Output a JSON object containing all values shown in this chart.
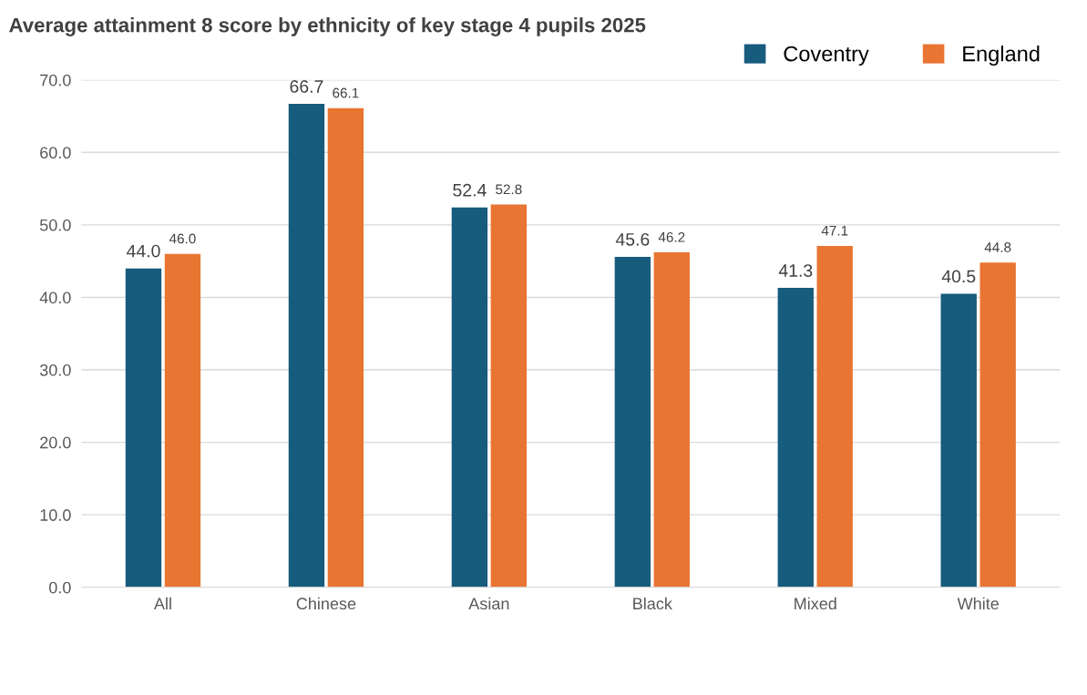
{
  "chart_data": {
    "type": "bar",
    "title": "Average attainment 8 score by ethnicity of key stage 4 pupils 2025",
    "categories": [
      "All",
      "Chinese",
      "Asian",
      "Black",
      "Mixed",
      "White"
    ],
    "series": [
      {
        "name": "Coventry",
        "color": "#175b7d",
        "values": [
          44.0,
          66.7,
          52.4,
          45.6,
          41.3,
          40.5
        ],
        "value_labels": [
          "44.0",
          "66.7",
          "52.4",
          "45.6",
          "41.3",
          "40.5"
        ]
      },
      {
        "name": "England",
        "color": "#e97532",
        "values": [
          46.0,
          66.1,
          52.8,
          46.2,
          47.1,
          44.8
        ],
        "value_labels": [
          "46.0",
          "66.1",
          "52.8",
          "46.2",
          "47.1",
          "44.8"
        ]
      }
    ],
    "ylim": [
      0,
      70
    ],
    "yticks": [
      {
        "value": 0,
        "label": "0.0"
      },
      {
        "value": 10,
        "label": "10.0"
      },
      {
        "value": 20,
        "label": "20.0"
      },
      {
        "value": 30,
        "label": "30.0"
      },
      {
        "value": 40,
        "label": "40.0"
      },
      {
        "value": 50,
        "label": "50.0"
      },
      {
        "value": 60,
        "label": "60.0"
      },
      {
        "value": 70,
        "label": "70.0"
      }
    ],
    "grid": "y",
    "legend": "top right"
  }
}
